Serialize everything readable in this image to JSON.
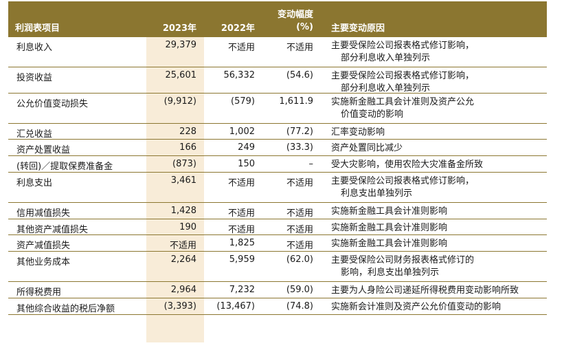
{
  "header": {
    "item": "利润表项目",
    "y2023": "2023年",
    "y2022": "2022年",
    "change_line1": "变动幅度",
    "change_line2": "(%)",
    "reason": "主要变动原因"
  },
  "rows": [
    {
      "name": "利息收入",
      "y2023": "29,379",
      "y2022": "不适用",
      "change": "不适用",
      "reason1": "主要受保险公司报表格式修订影响，",
      "reason2": "部分利息收入单独列示"
    },
    {
      "name": "投资收益",
      "y2023": "25,601",
      "y2022": "56,332",
      "change": "(54.6)",
      "reason1": "主要受保险公司报表格式修订影响，",
      "reason2": "部分利息收入单独列示"
    },
    {
      "name": "公允价值变动损失",
      "y2023": "(9,912)",
      "y2022": "(579)",
      "change": "1,611.9",
      "reason1": "实施新金融工具会计准则及资产公允",
      "reason2": "价值变动的影响"
    },
    {
      "name": "汇兑收益",
      "y2023": "228",
      "y2022": "1,002",
      "change": "(77.2)",
      "reason1": "汇率变动影响",
      "reason2": ""
    },
    {
      "name": "资产处置收益",
      "y2023": "166",
      "y2022": "249",
      "change": "(33.3)",
      "reason1": "资产处置同比减少",
      "reason2": ""
    },
    {
      "name": "(转回)／提取保费准备金",
      "y2023": "(873)",
      "y2022": "150",
      "change": "–",
      "reason1": "受大灾影响，使用农险大灾准备金所致",
      "reason2": ""
    },
    {
      "name": "利息支出",
      "y2023": "3,461",
      "y2022": "不适用",
      "change": "不适用",
      "reason1": "主要受保险公司报表格式修订影响，",
      "reason2": "利息支出单独列示"
    },
    {
      "name": "信用减值损失",
      "y2023": "1,428",
      "y2022": "不适用",
      "change": "不适用",
      "reason1": "实施新金融工具会计准则影响",
      "reason2": ""
    },
    {
      "name": "其他资产减值损失",
      "y2023": "190",
      "y2022": "不适用",
      "change": "不适用",
      "reason1": "实施新金融工具会计准则影响",
      "reason2": ""
    },
    {
      "name": "资产减值损失",
      "y2023": "不适用",
      "y2022": "1,825",
      "change": "不适用",
      "reason1": "实施新金融工具会计准则影响",
      "reason2": ""
    },
    {
      "name": "其他业务成本",
      "y2023": "2,264",
      "y2022": "5,959",
      "change": "(62.0)",
      "reason1": "主要受保险公司财务报表格式修订的",
      "reason2": "影响，利息支出单独列示"
    },
    {
      "name": "所得税费用",
      "y2023": "2,964",
      "y2022": "7,232",
      "change": "(59.0)",
      "reason1": "主要为人身险公司递延所得税费用变动影响所致",
      "reason2": ""
    },
    {
      "name": "其他综合收益的税后净额",
      "y2023": "(3,393)",
      "y2022": "(13,467)",
      "change": "(74.8)",
      "reason1": "实施新会计准则及资产公允价值变动的影响",
      "reason2": ""
    }
  ]
}
